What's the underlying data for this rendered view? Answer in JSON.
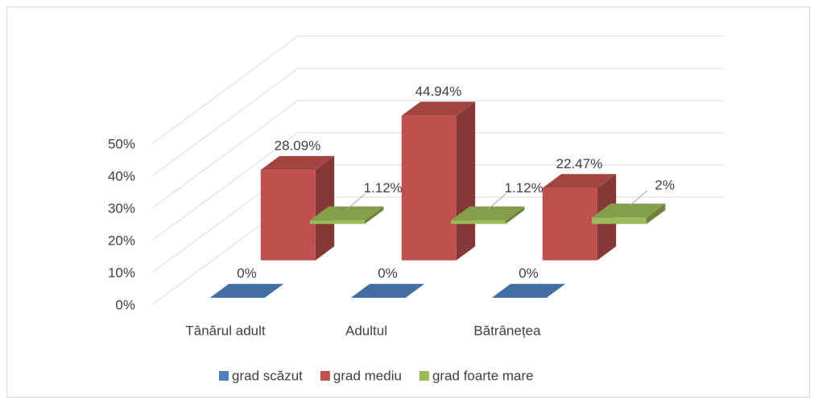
{
  "chart_data": {
    "type": "bar3d",
    "categories": [
      "Tânărul adult",
      "Adultul",
      "Bătrânețea"
    ],
    "series": [
      {
        "name": "grad scăzut",
        "color": "#4f81bd",
        "values": [
          0,
          0,
          0
        ],
        "value_labels": [
          "0%",
          "0%",
          "0%"
        ]
      },
      {
        "name": "grad mediu",
        "color": "#c0504d",
        "values": [
          28.09,
          44.94,
          22.47
        ],
        "value_labels": [
          "28.09%",
          "44.94%",
          "22.47%"
        ]
      },
      {
        "name": "grad foarte mare",
        "color": "#9bbb59",
        "values": [
          1.12,
          1.12,
          2
        ],
        "value_labels": [
          "1.12%",
          "1.12%",
          "2%"
        ]
      }
    ],
    "ylim": [
      0,
      50
    ],
    "yticks": [
      {
        "value": 0,
        "label": "0%"
      },
      {
        "value": 10,
        "label": "10%"
      },
      {
        "value": 20,
        "label": "20%"
      },
      {
        "value": 30,
        "label": "30%"
      },
      {
        "value": 40,
        "label": "40%"
      },
      {
        "value": 50,
        "label": "50%"
      }
    ],
    "grid": true,
    "legend": "bottom"
  }
}
